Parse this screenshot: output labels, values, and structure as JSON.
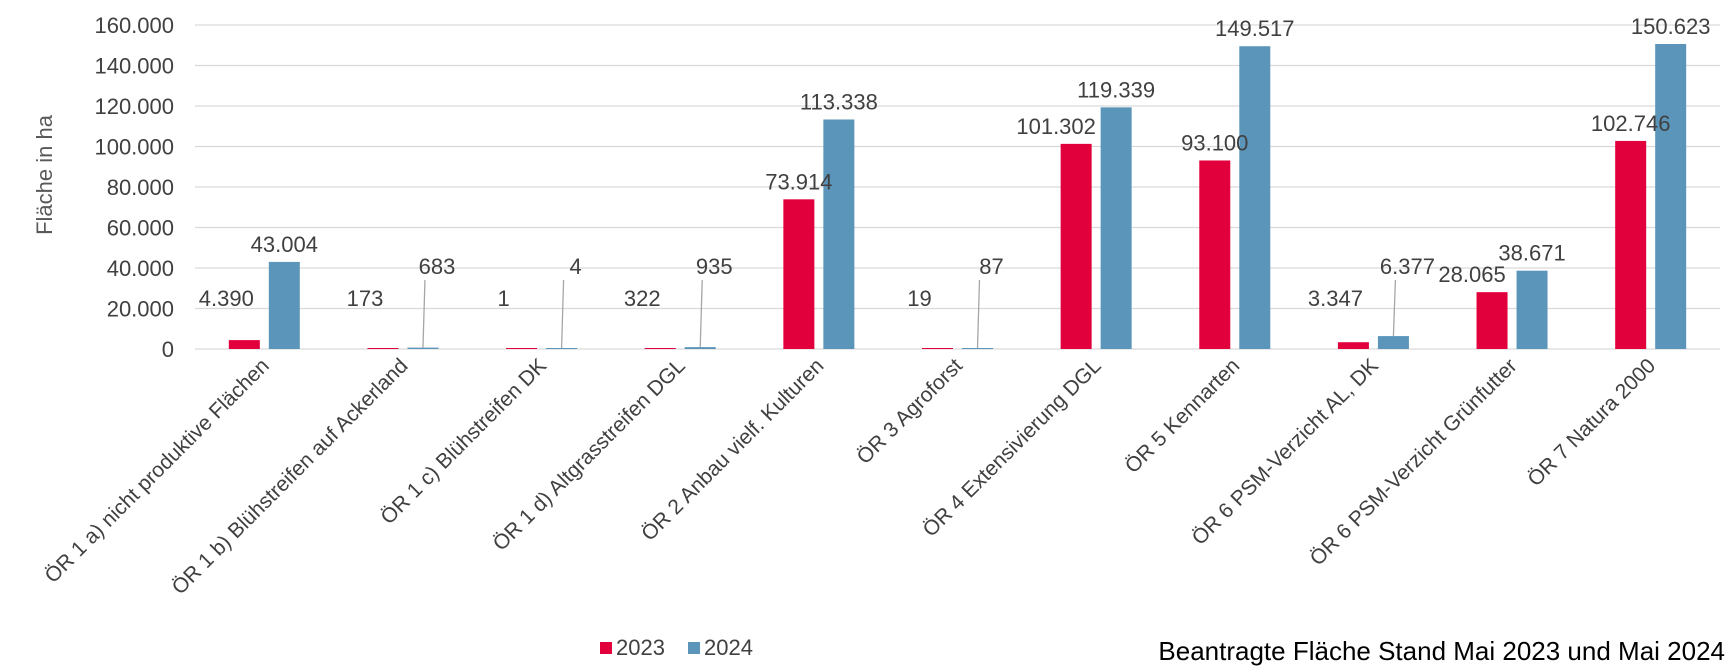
{
  "chart_data": {
    "type": "bar",
    "title": "",
    "ylabel": "Fläche in ha",
    "xlabel": "",
    "ylim": [
      0,
      160000
    ],
    "y_ticks": [
      "0",
      "20.000",
      "40.000",
      "60.000",
      "80.000",
      "100.000",
      "120.000",
      "140.000",
      "160.000"
    ],
    "grid": true,
    "legend_position": "bottom",
    "categories": [
      "ÖR 1 a) nicht produktive Flächen",
      "ÖR 1 b) Blühstreifen auf Ackerland",
      "ÖR 1 c) Blühstreifen DK",
      "ÖR 1 d) Altgrasstreifen DGL",
      "ÖR 2 Anbau vielf. Kulturen",
      "ÖR 3 Agroforst",
      "ÖR 4 Extensivierung DGL",
      "ÖR 5 Kennarten",
      "ÖR 6 PSM-Verzicht AL, DK",
      "ÖR 6 PSM-Verzicht Grünfutter",
      "ÖR 7 Natura 2000"
    ],
    "series": [
      {
        "name": "2023",
        "color": "#e2003c",
        "values": [
          4390,
          173,
          1,
          322,
          73914,
          19,
          101302,
          93100,
          3347,
          28065,
          102746
        ],
        "labels": [
          "4.390",
          "173",
          "1",
          "322",
          "73.914",
          "19",
          "101.302",
          "93.100",
          "3.347",
          "28.065",
          "102.746"
        ]
      },
      {
        "name": "2024",
        "color": "#5b95ba",
        "values": [
          43004,
          683,
          4,
          935,
          113338,
          87,
          119339,
          149517,
          6377,
          38671,
          150623
        ],
        "labels": [
          "43.004",
          "683",
          "4",
          "935",
          "113.338",
          "87",
          "119.339",
          "149.517",
          "6.377",
          "38.671",
          "150.623"
        ]
      }
    ]
  },
  "footnote": "Beantragte Fläche Stand Mai 2023 und Mai 2024",
  "colors": {
    "gridline": "#d9d9d9",
    "axis_text": "#404040",
    "leader_line": "#a6a6a6"
  }
}
